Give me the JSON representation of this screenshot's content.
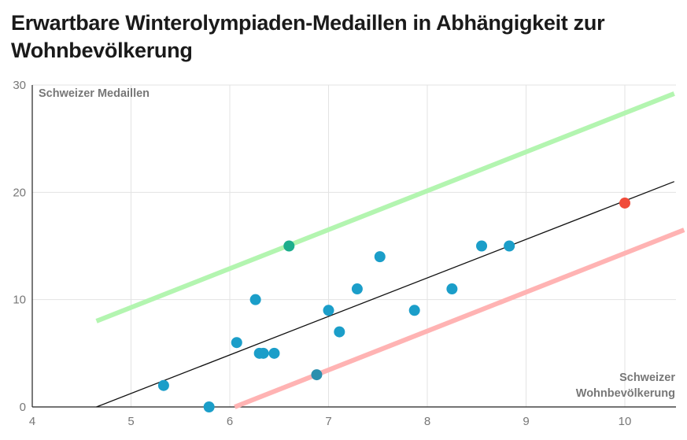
{
  "title": "Erwartbare Winterolympiaden-Medaillen in Abhängigkeit zur Wohnbevölkerung",
  "chart_data": {
    "type": "scatter",
    "title": "Erwartbare Winterolympiaden-Medaillen in Abhängigkeit zur Wohnbevölkerung",
    "ylabel": "Schweizer Medaillen",
    "xlabel_lines": [
      "Schweizer",
      "Wohnbevölkerung"
    ],
    "xlim": [
      4,
      10.5
    ],
    "ylim": [
      0,
      30
    ],
    "x_ticks": [
      4,
      5,
      6,
      7,
      8,
      9,
      10
    ],
    "y_ticks": [
      0,
      10,
      20,
      30
    ],
    "grid": true,
    "points": [
      {
        "x": 5.33,
        "y": 2,
        "color": "#1b9ec9"
      },
      {
        "x": 5.79,
        "y": 0,
        "color": "#1b9ec9"
      },
      {
        "x": 6.07,
        "y": 6,
        "color": "#1b9ec9"
      },
      {
        "x": 6.26,
        "y": 10,
        "color": "#1b9ec9"
      },
      {
        "x": 6.3,
        "y": 5,
        "color": "#1b9ec9"
      },
      {
        "x": 6.34,
        "y": 5,
        "color": "#1b9ec9"
      },
      {
        "x": 6.45,
        "y": 5,
        "color": "#1b9ec9"
      },
      {
        "x": 6.6,
        "y": 15,
        "color": "#1cae8c"
      },
      {
        "x": 6.88,
        "y": 3,
        "color": "#2b8fae"
      },
      {
        "x": 7.0,
        "y": 9,
        "color": "#1b9ec9"
      },
      {
        "x": 7.11,
        "y": 7,
        "color": "#1b9ec9"
      },
      {
        "x": 7.29,
        "y": 11,
        "color": "#1b9ec9"
      },
      {
        "x": 7.52,
        "y": 14,
        "color": "#1b9ec9"
      },
      {
        "x": 7.87,
        "y": 9,
        "color": "#1b9ec9"
      },
      {
        "x": 8.25,
        "y": 11,
        "color": "#1b9ec9"
      },
      {
        "x": 8.55,
        "y": 15,
        "color": "#1b9ec9"
      },
      {
        "x": 8.83,
        "y": 15,
        "color": "#1b9ec9"
      },
      {
        "x": 10.0,
        "y": 19,
        "color": "#f04b3a"
      }
    ],
    "lines": [
      {
        "x1": 4.65,
        "y1": 8,
        "x2": 10.5,
        "y2": 29.2,
        "color": "#b3f5b0"
      },
      {
        "x1": 4.65,
        "y1": 0,
        "x2": 10.5,
        "y2": 21,
        "color": "#111111"
      },
      {
        "x1": 6.05,
        "y1": 0,
        "x2": 10.6,
        "y2": 16.5,
        "color": "#ffb3b3"
      }
    ]
  }
}
